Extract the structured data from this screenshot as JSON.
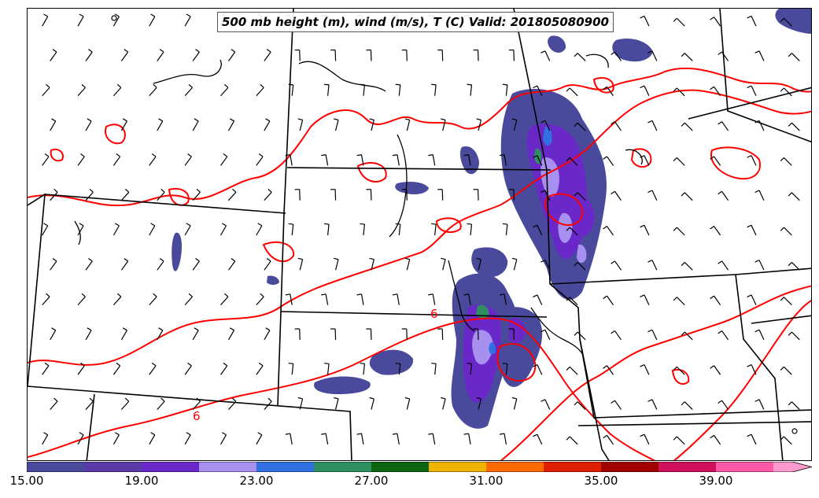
{
  "title": "500 mb height (m), wind (m/s), T (C) Valid: 201805080900",
  "contour_labels": [
    "6",
    "6"
  ],
  "colorbar": {
    "colors": [
      "#4a4a9c",
      "#5a3aa8",
      "#6a28c8",
      "#a890f0",
      "#3070e0",
      "#2e9060",
      "#0a6410",
      "#f0b400",
      "#ff6a00",
      "#e01e00",
      "#a00000",
      "#d0105a",
      "#ff5aaa",
      "#ff9ad0"
    ],
    "tick_labels": [
      "15.00",
      "19.00",
      "23.00",
      "27.00",
      "31.00",
      "35.00",
      "39.00"
    ]
  },
  "layer_colors": {
    "contour": "#ff0000",
    "boundary": "#000000",
    "shade_low": "#4a4a9c",
    "shade_mid": "#6a28c8",
    "shade_light": "#a890f0",
    "shade_blue": "#3070e0",
    "shade_green": "#2e9060"
  }
}
